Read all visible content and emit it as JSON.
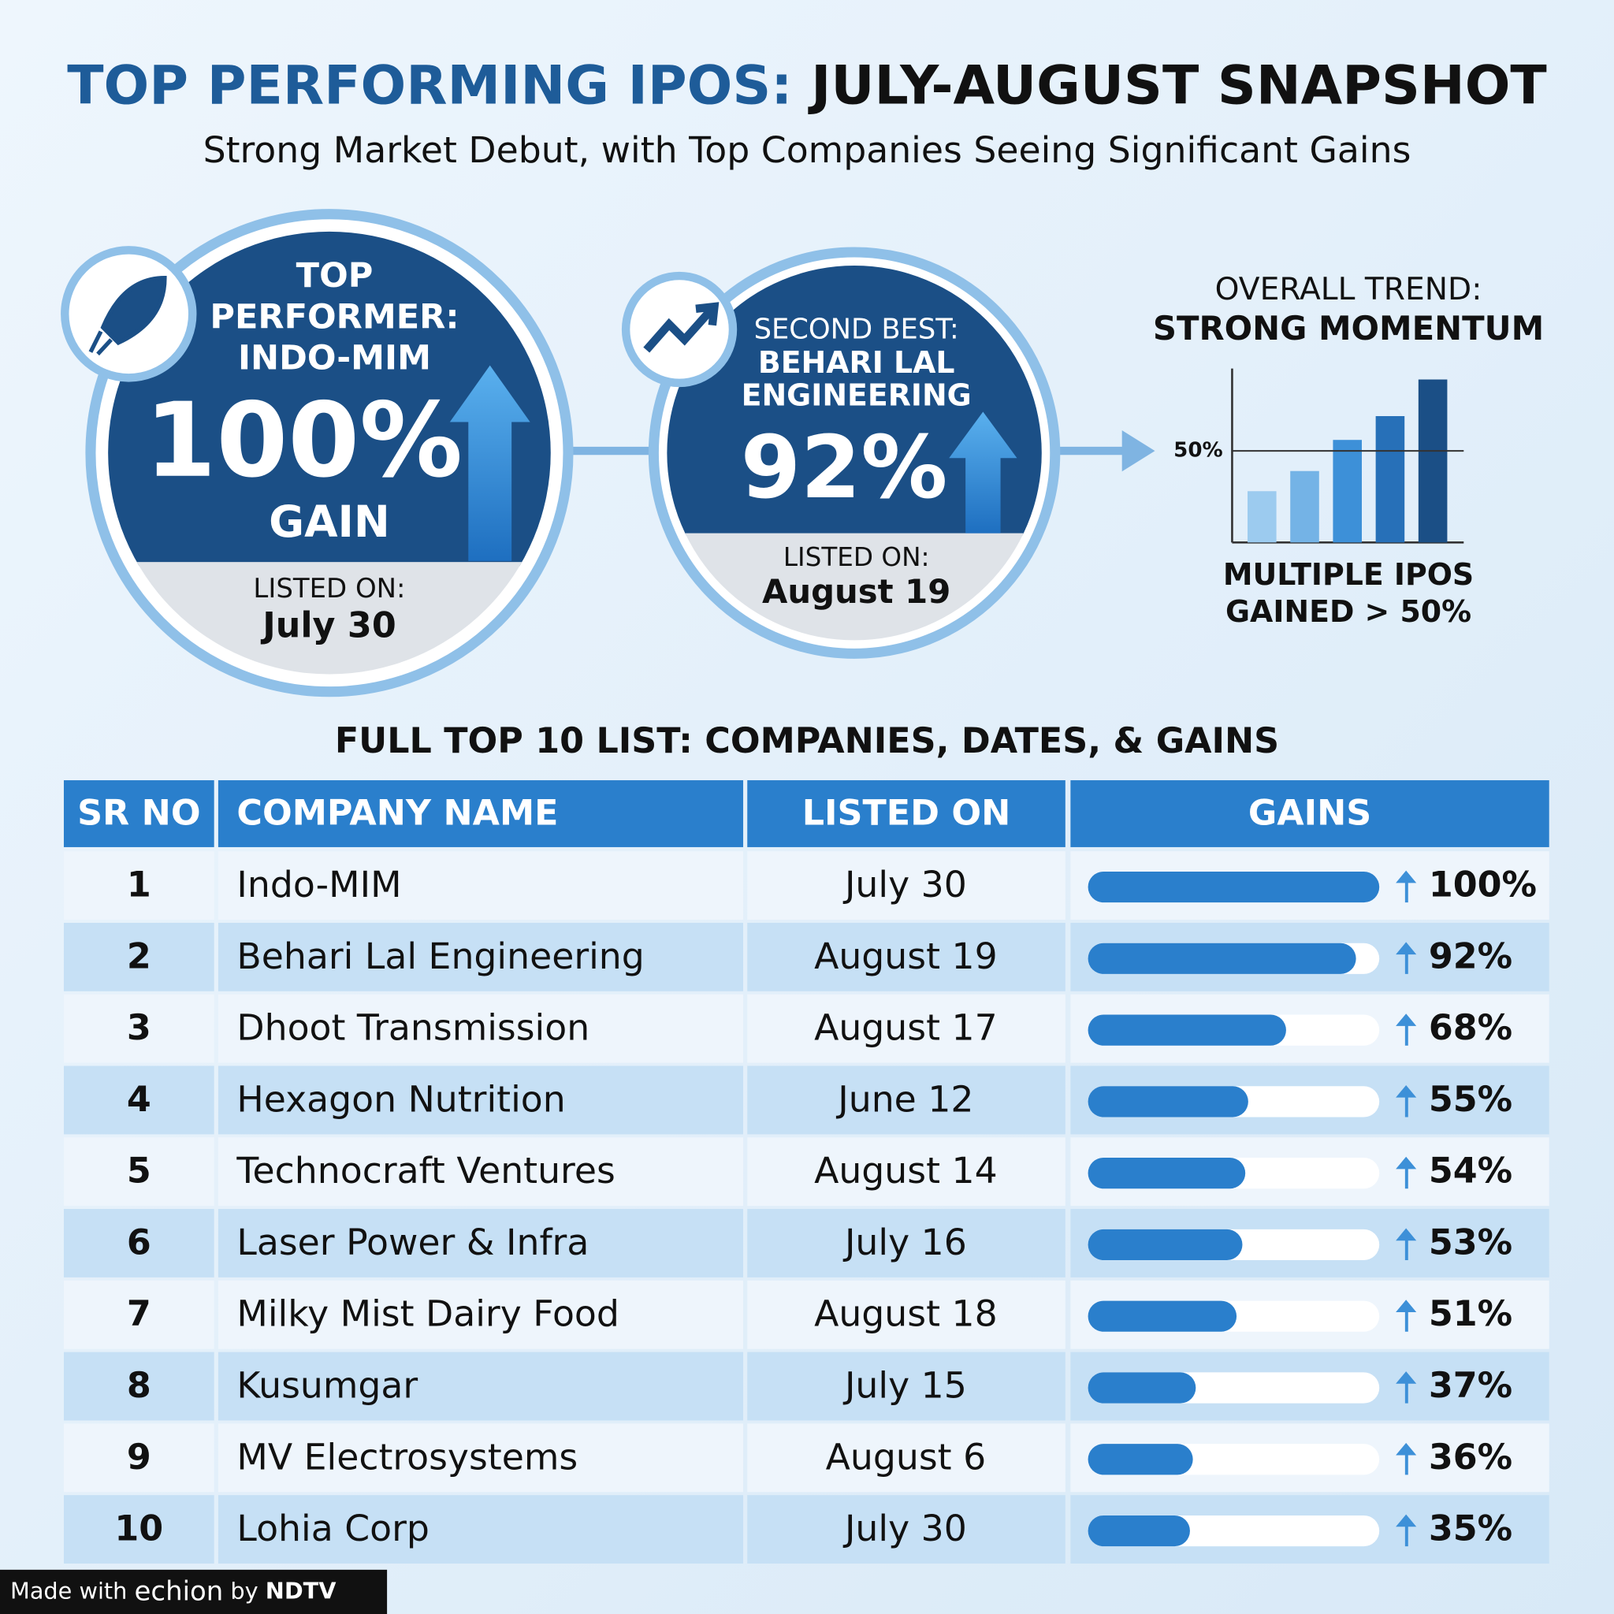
{
  "header": {
    "title_part1": "TOP PERFORMING IPOS:",
    "title_part2": "JULY-AUGUST SNAPSHOT",
    "subtitle": "Strong Market Debut, with Top Companies Seeing Significant Gains"
  },
  "top_performer": {
    "line1": "TOP",
    "line2": "PERFORMER:",
    "line3": "INDO-MIM",
    "gain": "100%",
    "gain_word": "GAIN",
    "listed_label": "LISTED ON:",
    "date": "July 30"
  },
  "second_best": {
    "line1": "SECOND BEST:",
    "line2": "BEHARI LAL",
    "line3": "ENGINEERING",
    "gain": "92%",
    "listed_label": "LISTED ON:",
    "date": "August 19"
  },
  "trend": {
    "title1": "OVERALL TREND:",
    "title2": "STRONG MOMENTUM",
    "values": [
      28,
      39,
      56,
      69,
      89
    ],
    "ylim": [
      0,
      95
    ],
    "reference": {
      "value": 50,
      "label": "50%"
    },
    "caption1": "MULTIPLE IPOS",
    "caption2": "GAINED > 50%"
  },
  "table": {
    "title": "FULL TOP 10 LIST: COMPANIES, DATES, & GAINS",
    "columns": [
      "SR NO",
      "COMPANY NAME",
      "LISTED ON",
      "GAINS"
    ],
    "xlim": [
      0,
      100
    ],
    "rows": [
      {
        "sr": 1,
        "company": "Indo-MIM",
        "listed_on": "July 30",
        "gain": 100,
        "gain_label": "100%"
      },
      {
        "sr": 2,
        "company": "Behari Lal Engineering",
        "listed_on": "August 19",
        "gain": 92,
        "gain_label": "92%"
      },
      {
        "sr": 3,
        "company": "Dhoot Transmission",
        "listed_on": "August 17",
        "gain": 68,
        "gain_label": "68%"
      },
      {
        "sr": 4,
        "company": "Hexagon Nutrition",
        "listed_on": "June 12",
        "gain": 55,
        "gain_label": "55%"
      },
      {
        "sr": 5,
        "company": "Technocraft Ventures",
        "listed_on": "August 14",
        "gain": 54,
        "gain_label": "54%"
      },
      {
        "sr": 6,
        "company": "Laser Power & Infra",
        "listed_on": "July 16",
        "gain": 53,
        "gain_label": "53%"
      },
      {
        "sr": 7,
        "company": "Milky Mist Dairy Food",
        "listed_on": "August 18",
        "gain": 51,
        "gain_label": "51%"
      },
      {
        "sr": 8,
        "company": "Kusumgar",
        "listed_on": "July 15",
        "gain": 37,
        "gain_label": "37%"
      },
      {
        "sr": 9,
        "company": "MV Electrosystems",
        "listed_on": "August 6",
        "gain": 36,
        "gain_label": "36%"
      },
      {
        "sr": 10,
        "company": "Lohia Corp",
        "listed_on": "July 30",
        "gain": 35,
        "gain_label": "35%"
      }
    ]
  },
  "footer": {
    "made_with": "Made with",
    "brand": "echion",
    "by": "by",
    "ndtv": "NDTV"
  }
}
